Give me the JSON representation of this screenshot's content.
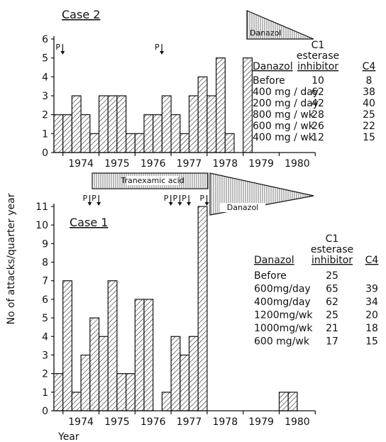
{
  "ylabel": "No of attacks/quarter year",
  "xlabel": "Year",
  "chart_data": [
    {
      "type": "bar",
      "title": "Case 2",
      "xlabel": "",
      "ylabel": "No of attacks/quarter year",
      "ylim": [
        0,
        6
      ],
      "year_ticks": [
        "1974",
        "1975",
        "1976",
        "1977",
        "1978",
        "1979",
        "1980"
      ],
      "y_ticks": [
        "0",
        "1",
        "2",
        "3",
        "4",
        "5",
        "6"
      ],
      "categories": [
        "1973 Q4",
        "1974 Q1",
        "1974 Q2",
        "1974 Q3",
        "1974 Q4",
        "1975 Q1",
        "1975 Q2",
        "1975 Q3",
        "1975 Q4",
        "1976 Q1",
        "1976 Q2",
        "1976 Q3",
        "1976 Q4",
        "1977 Q1",
        "1977 Q2",
        "1977 Q3",
        "1977 Q4",
        "1978 Q1",
        "1978 Q2",
        "1978 Q3",
        "1978 Q4",
        "1979 Q1"
      ],
      "values": [
        2,
        2,
        3,
        2,
        1,
        3,
        3,
        3,
        1,
        1,
        2,
        2,
        3,
        2,
        1,
        3,
        4,
        3,
        5,
        1,
        0,
        5
      ],
      "markers": [
        {
          "label": "P",
          "position": "1973 Q4"
        },
        {
          "label": "P",
          "position": "1976 Q3"
        }
      ],
      "treatment": {
        "label": "Danazol",
        "shape": "tapering wedge, 1978 to 1980"
      },
      "table": {
        "headers": [
          "Danazol",
          "C1 esterase inhibitor",
          "C4"
        ],
        "rows": [
          [
            "Before",
            "10",
            "8"
          ],
          [
            "400 mg / day",
            "62",
            "38"
          ],
          [
            "200 mg / day",
            "42",
            "40"
          ],
          [
            "800 mg / wk",
            "28",
            "25"
          ],
          [
            "600 mg / wk",
            "26",
            "22"
          ],
          [
            "400 mg / wk",
            "12",
            "15"
          ]
        ]
      }
    },
    {
      "type": "bar",
      "title": "Case 1",
      "xlabel": "Year",
      "ylabel": "No of attacks/quarter year",
      "ylim": [
        0,
        11
      ],
      "year_ticks": [
        "1974",
        "1975",
        "1976",
        "1977",
        "1978",
        "1979",
        "1980"
      ],
      "y_ticks": [
        "0",
        "1",
        "2",
        "3",
        "4",
        "5",
        "6",
        "7",
        "8",
        "9",
        "10",
        "11"
      ],
      "categories": [
        "1973 Q4",
        "1974 Q1",
        "1974 Q2",
        "1974 Q3",
        "1974 Q4",
        "1975 Q1",
        "1975 Q2",
        "1975 Q3",
        "1975 Q4",
        "1976 Q1",
        "1976 Q2",
        "1976 Q3",
        "1976 Q4",
        "1977 Q1",
        "1977 Q2",
        "1977 Q3",
        "1977 Q4",
        "1978 Q1",
        "1978 Q2",
        "1978 Q3",
        "1978 Q4",
        "1979 Q1",
        "1979 Q2",
        "1979 Q3",
        "1979 Q4",
        "1980 Q1",
        "1980 Q2"
      ],
      "values": [
        2,
        7,
        1,
        3,
        5,
        4,
        7,
        2,
        2,
        6,
        6,
        0,
        1,
        4,
        3,
        4,
        11,
        0,
        0,
        0,
        0,
        0,
        0,
        0,
        0,
        1,
        1
      ],
      "markers": [
        {
          "label": "P",
          "position": "1974 Q3"
        },
        {
          "label": "P",
          "position": "1974 Q4"
        },
        {
          "label": "P",
          "position": "1976 Q4"
        },
        {
          "label": "P",
          "position": "1977 Q1"
        },
        {
          "label": "P",
          "position": "1977 Q2"
        },
        {
          "label": "P",
          "position": "1977 Q4"
        }
      ],
      "treatments": [
        {
          "label": "Tranexamic acid",
          "shape": "bar, 1974 to 1978"
        },
        {
          "label": "Danazol",
          "shape": "tapering wedge, 1978 to 1980"
        }
      ],
      "table": {
        "headers": [
          "Danazol",
          "C1 esterase inhibitor",
          "C4"
        ],
        "rows": [
          [
            "Before",
            "25",
            ""
          ],
          [
            "600mg/day",
            "65",
            "39"
          ],
          [
            "400mg/day",
            "62",
            "34"
          ],
          [
            "1200mg/wk",
            "25",
            "20"
          ],
          [
            "1000mg/wk",
            "21",
            "18"
          ],
          [
            "600 mg/wk",
            "17",
            "15"
          ]
        ]
      }
    }
  ]
}
